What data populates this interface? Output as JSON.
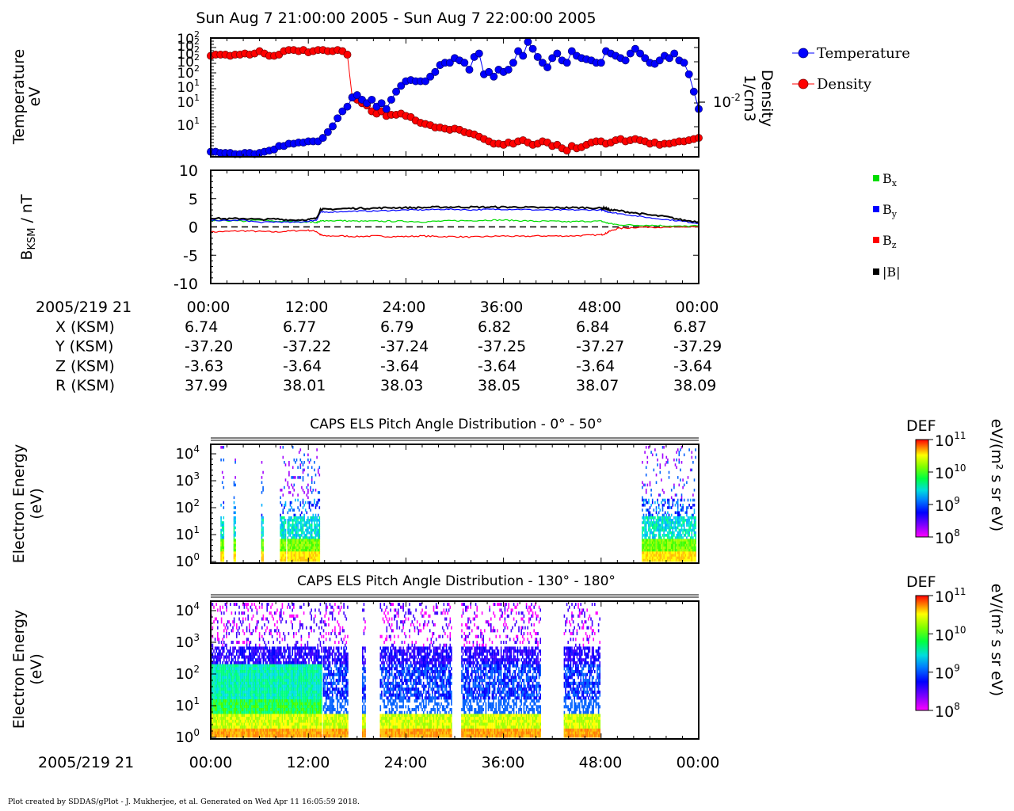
{
  "title": "Sun Aug 7 21:00:00 2005 - Sun Aug 7 22:00:00 2005",
  "footer": "Plot created by SDDAS/gPlot - J. Mukherjee, et al.  Generated on Wed Apr 11 16:05:59 2018.",
  "colors": {
    "temperature": "#0000ff",
    "density": "#ff0000",
    "bx": "#00dd00",
    "by": "#0000ff",
    "bz": "#ff0000",
    "bmag": "#000000"
  },
  "time_axis": {
    "ticks": [
      "00:00",
      "12:00",
      "24:00",
      "36:00",
      "48:00",
      "00:00"
    ],
    "minutes": [
      0,
      12,
      24,
      36,
      48,
      60
    ],
    "label": "2005/219 21"
  },
  "ephemeris": {
    "rows": [
      {
        "label": "X (KSM)",
        "values": [
          "6.74",
          "6.77",
          "6.79",
          "6.82",
          "6.84",
          "6.87"
        ]
      },
      {
        "label": "Y (KSM)",
        "values": [
          "-37.20",
          "-37.22",
          "-37.24",
          "-37.25",
          "-37.27",
          "-37.29"
        ]
      },
      {
        "label": "Z (KSM)",
        "values": [
          "-3.63",
          "-3.64",
          "-3.64",
          "-3.64",
          "-3.64",
          "-3.64"
        ]
      },
      {
        "label": "R (KSM)",
        "values": [
          "37.99",
          "38.01",
          "38.03",
          "38.05",
          "38.07",
          "38.09"
        ]
      }
    ]
  },
  "chart_data": [
    {
      "type": "line",
      "panel": "moments",
      "ylabel_left": [
        "Temperature",
        "eV"
      ],
      "ylabel_right": [
        "Density",
        "1/cm3"
      ],
      "left_tick_labels": [
        {
          "base": "10",
          "exp": "2"
        },
        {
          "base": "10",
          "exp": "2"
        },
        {
          "base": "10",
          "exp": "2"
        },
        {
          "base": "10",
          "exp": "2"
        },
        {
          "base": "10",
          "exp": "2"
        },
        {
          "base": "10",
          "exp": "1"
        },
        {
          "base": "10",
          "exp": "1"
        },
        {
          "base": "10",
          "exp": "1"
        }
      ],
      "right_tick_label": {
        "base": "10",
        "exp": "-2"
      },
      "legend": [
        {
          "name": "Temperature"
        },
        {
          "name": "Density"
        }
      ],
      "x_minutes": [
        0,
        0.6,
        1.2,
        1.8,
        2.4,
        3,
        3.6,
        4.2,
        4.8,
        5.4,
        6,
        6.6,
        7.2,
        7.8,
        8.4,
        9,
        9.6,
        10.2,
        10.8,
        11.4,
        12,
        12.6,
        13.2,
        13.8,
        14.4,
        15,
        15.6,
        16.2,
        16.8,
        17.4,
        18,
        18.6,
        19.2,
        19.8,
        20.4,
        21,
        21.6,
        22.2,
        22.8,
        23.4,
        24,
        24.6,
        25.2,
        25.8,
        26.4,
        27,
        27.6,
        28.2,
        28.8,
        29.4,
        30,
        30.6,
        31.2,
        31.8,
        32.4,
        33,
        33.6,
        34.2,
        34.8,
        35.4,
        36,
        36.6,
        37.2,
        37.8,
        38.4,
        39,
        39.6,
        40.2,
        40.8,
        41.4,
        42,
        42.6,
        43.2,
        43.8,
        44.4,
        45,
        45.6,
        46.2,
        46.8,
        47.4,
        48,
        48.6,
        49.2,
        49.8,
        50.4,
        51,
        51.6,
        52.2,
        52.8,
        53.4,
        54,
        54.6,
        55.2,
        55.8,
        56.4,
        57,
        57.6,
        58.2,
        58.8,
        59.4,
        60
      ],
      "temperature_level": [
        0.03,
        0.03,
        0.02,
        0.02,
        0.02,
        0.01,
        0.01,
        0.02,
        0.02,
        0.01,
        0.02,
        0.03,
        0.04,
        0.05,
        0.08,
        0.08,
        0.1,
        0.1,
        0.11,
        0.11,
        0.12,
        0.12,
        0.12,
        0.15,
        0.2,
        0.25,
        0.32,
        0.38,
        0.42,
        0.5,
        0.52,
        0.48,
        0.45,
        0.48,
        0.42,
        0.45,
        0.4,
        0.48,
        0.55,
        0.6,
        0.64,
        0.65,
        0.64,
        0.64,
        0.64,
        0.68,
        0.72,
        0.78,
        0.8,
        0.8,
        0.84,
        0.82,
        0.8,
        0.74,
        0.85,
        0.88,
        0.7,
        0.72,
        0.68,
        0.74,
        0.72,
        0.74,
        0.8,
        0.9,
        0.86,
        0.98,
        0.92,
        0.85,
        0.8,
        0.76,
        0.84,
        0.88,
        0.82,
        0.8,
        0.9,
        0.86,
        0.84,
        0.83,
        0.82,
        0.8,
        0.8,
        0.9,
        0.88,
        0.86,
        0.84,
        0.82,
        0.88,
        0.92,
        0.88,
        0.84,
        0.8,
        0.79,
        0.82,
        0.86,
        0.84,
        0.88,
        0.82,
        0.8,
        0.7,
        0.55,
        0.4
      ],
      "density_level": [
        0.86,
        0.87,
        0.87,
        0.87,
        0.86,
        0.87,
        0.87,
        0.88,
        0.87,
        0.88,
        0.9,
        0.88,
        0.86,
        0.86,
        0.87,
        0.9,
        0.91,
        0.91,
        0.9,
        0.91,
        0.89,
        0.9,
        0.91,
        0.91,
        0.9,
        0.9,
        0.91,
        0.9,
        0.87,
        0.5,
        0.48,
        0.45,
        0.43,
        0.38,
        0.36,
        0.38,
        0.34,
        0.35,
        0.35,
        0.36,
        0.34,
        0.33,
        0.3,
        0.28,
        0.27,
        0.26,
        0.24,
        0.24,
        0.23,
        0.22,
        0.23,
        0.22,
        0.2,
        0.19,
        0.18,
        0.16,
        0.14,
        0.12,
        0.1,
        0.1,
        0.09,
        0.11,
        0.1,
        0.12,
        0.13,
        0.11,
        0.09,
        0.1,
        0.12,
        0.11,
        0.08,
        0.09,
        0.06,
        0.04,
        0.08,
        0.06,
        0.07,
        0.09,
        0.11,
        0.12,
        0.12,
        0.1,
        0.11,
        0.13,
        0.14,
        0.12,
        0.13,
        0.14,
        0.13,
        0.12,
        0.1,
        0.11,
        0.09,
        0.1,
        0.1,
        0.11,
        0.12,
        0.12,
        0.13,
        0.14,
        0.15
      ]
    },
    {
      "type": "line",
      "panel": "magnetic_field",
      "ylabel": "BKSM / nT",
      "ylim": [
        -10,
        10
      ],
      "ytick_values": [
        10,
        5,
        0,
        -5,
        -10
      ],
      "ytick_labels": [
        "10",
        "5",
        "0",
        "-5",
        "-10"
      ],
      "legend": [
        {
          "name": "Bx",
          "sub": "x"
        },
        {
          "name": "By",
          "sub": "y"
        },
        {
          "name": "Bz",
          "sub": "z"
        },
        {
          "name": "|B|"
        }
      ],
      "x_minutes": [
        0,
        2,
        4,
        6,
        8,
        10,
        12,
        13,
        13.5,
        14,
        16,
        18,
        20,
        22,
        24,
        26,
        28,
        30,
        32,
        34,
        36,
        38,
        40,
        42,
        44,
        46,
        48,
        48.5,
        49,
        50,
        52,
        54,
        56,
        58,
        60
      ],
      "bx": [
        1.0,
        1.1,
        1.0,
        1.2,
        1.0,
        0.9,
        0.9,
        0.8,
        1.0,
        1.1,
        1.1,
        1.0,
        1.0,
        1.0,
        1.0,
        0.9,
        1.0,
        1.1,
        1.1,
        1.2,
        1.2,
        1.1,
        1.0,
        1.0,
        0.9,
        1.0,
        1.0,
        0.8,
        0.6,
        0.4,
        0.3,
        0.3,
        0.2,
        0.1,
        0.2
      ],
      "by": [
        1.2,
        1.1,
        1.2,
        0.8,
        0.9,
        0.8,
        1.0,
        1.2,
        2.6,
        2.6,
        2.7,
        2.8,
        2.8,
        2.9,
        3.0,
        3.0,
        3.1,
        3.1,
        3.0,
        3.1,
        3.1,
        3.1,
        3.0,
        3.0,
        3.0,
        3.0,
        3.0,
        2.8,
        2.6,
        2.4,
        2.0,
        1.6,
        1.3,
        1.0,
        0.6
      ],
      "bz": [
        -0.9,
        -0.8,
        -0.7,
        -0.8,
        -0.9,
        -0.7,
        -0.6,
        -0.8,
        -1.4,
        -1.6,
        -1.6,
        -1.7,
        -1.6,
        -1.7,
        -1.7,
        -1.6,
        -1.7,
        -1.7,
        -1.8,
        -1.7,
        -1.6,
        -1.7,
        -1.6,
        -1.6,
        -1.6,
        -1.5,
        -1.4,
        -1.2,
        -0.8,
        -0.3,
        -0.1,
        0.0,
        -0.1,
        0.0,
        0.0
      ],
      "bmag": [
        1.6,
        1.4,
        1.5,
        1.3,
        1.4,
        1.2,
        1.3,
        1.5,
        3.1,
        3.1,
        3.2,
        3.3,
        3.3,
        3.4,
        3.4,
        3.4,
        3.5,
        3.5,
        3.5,
        3.5,
        3.5,
        3.5,
        3.4,
        3.4,
        3.4,
        3.4,
        3.3,
        3.3,
        3.0,
        2.9,
        2.5,
        2.1,
        1.8,
        1.2,
        0.9
      ]
    },
    {
      "type": "heatmap",
      "panel": "els_low_pitch",
      "title": "CAPS ELS Pitch Angle Distribution - 0° - 50°",
      "ylabel": [
        "Electron Energy",
        "(eV)"
      ],
      "ytick_labels": [
        {
          "base": "10",
          "exp": "4"
        },
        {
          "base": "10",
          "exp": "3"
        },
        {
          "base": "10",
          "exp": "2"
        },
        {
          "base": "10",
          "exp": "1"
        },
        {
          "base": "10",
          "exp": "0"
        }
      ],
      "colorbar": {
        "title": "DEF",
        "unit": "eV/(m² s sr eV)",
        "tick_labels": [
          {
            "base": "10",
            "exp": "11"
          },
          {
            "base": "10",
            "exp": "10"
          },
          {
            "base": "10",
            "exp": "9"
          },
          {
            "base": "10",
            "exp": "8"
          }
        ]
      },
      "data_segments_minutes": [
        [
          1.2,
          1.6
        ],
        [
          2.8,
          3.1
        ],
        [
          6.2,
          6.4
        ],
        [
          8.5,
          9.2
        ],
        [
          9.4,
          13.4
        ],
        [
          53.0,
          59.6
        ]
      ]
    },
    {
      "type": "heatmap",
      "panel": "els_high_pitch",
      "title": "CAPS ELS Pitch Angle Distribution - 130° - 180°",
      "ylabel": [
        "Electron Energy",
        "(eV)"
      ],
      "ytick_labels": [
        {
          "base": "10",
          "exp": "4"
        },
        {
          "base": "10",
          "exp": "3"
        },
        {
          "base": "10",
          "exp": "2"
        },
        {
          "base": "10",
          "exp": "1"
        },
        {
          "base": "10",
          "exp": "0"
        }
      ],
      "colorbar": {
        "title": "DEF",
        "unit": "eV/(m² s sr eV)",
        "tick_labels": [
          {
            "base": "10",
            "exp": "11"
          },
          {
            "base": "10",
            "exp": "10"
          },
          {
            "base": "10",
            "exp": "9"
          },
          {
            "base": "10",
            "exp": "8"
          }
        ]
      },
      "data_segments_minutes": [
        [
          0,
          13.6
        ],
        [
          13.8,
          16.8
        ],
        [
          18.6,
          19.0
        ],
        [
          20.8,
          29.6
        ],
        [
          30.8,
          40.6
        ],
        [
          43.4,
          47.8
        ]
      ]
    }
  ]
}
